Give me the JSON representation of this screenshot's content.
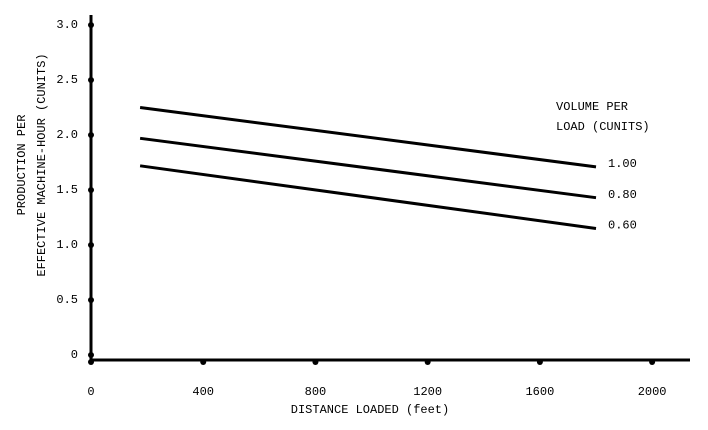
{
  "chart_data": {
    "type": "line",
    "ylabel": [
      "PRODUCTION PER",
      "EFFECTIVE MACHINE-HOUR (CUNITS)"
    ],
    "xlabel": "DISTANCE LOADED (feet)",
    "legend_title": [
      "VOLUME PER",
      "LOAD (CUNITS)"
    ],
    "x": [
      175,
      1800
    ],
    "series": [
      {
        "name": "1.00",
        "color": "#000000",
        "values": [
          2.25,
          1.71
        ]
      },
      {
        "name": "0.80",
        "color": "#000000",
        "values": [
          1.97,
          1.43
        ]
      },
      {
        "name": "0.60",
        "color": "#000000",
        "values": [
          1.72,
          1.15
        ]
      }
    ],
    "xlim": [
      0,
      2135
    ],
    "xticks": [
      0,
      400,
      800,
      1200,
      1600,
      2000
    ],
    "ylim": [
      0,
      3
    ],
    "yticks": [
      0,
      0.5,
      {
        "value": 1,
        "label": "1.0"
      },
      {
        "value": 1.5,
        "label": "1.5"
      },
      {
        "value": 2,
        "label": "2.0"
      },
      2.5,
      {
        "value": 3,
        "label": "3.0"
      }
    ]
  }
}
